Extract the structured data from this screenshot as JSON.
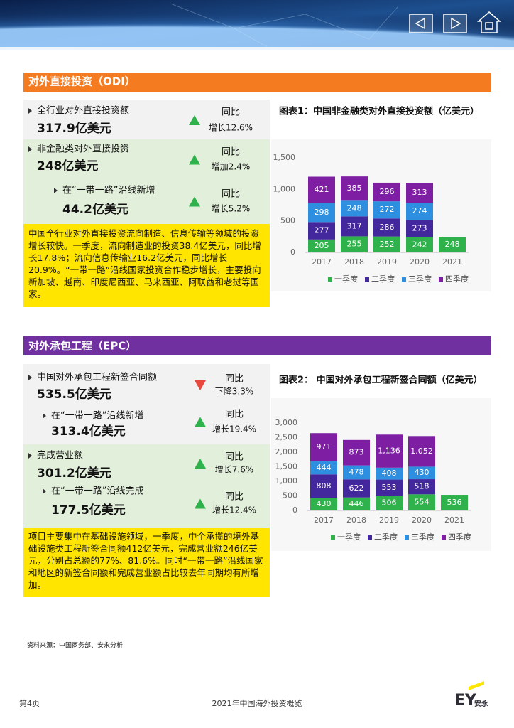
{
  "sections": [
    {
      "title": "对外直接投资（ODI）",
      "items": [
        {
          "label": "全行业对外直接投资额",
          "value": "317.9亿美元",
          "compare": "同比",
          "change": "增长12.6%"
        },
        {
          "label": "非金融类对外直接投资",
          "value": "248亿美元",
          "compare": "同比",
          "change": "增加2.4%"
        },
        {
          "label": "在“一带一路”沿线新增",
          "value": "44.2亿美元",
          "compare": "同比",
          "change": "增长5.2%"
        }
      ],
      "note": "中国全行业对外直接投资流向制造、信息传输等领域的投资增长较快。一季度，流向制造业的投资38.4亿美元，同比增长17.8%；流向信息传输业16.2亿美元，同比增长20.9%。“一带一路”沿线国家投资合作稳步增长，主要投向新加坡、越南、印度尼西亚、马来西亚、阿联酋和老挝等国家。"
    },
    {
      "title": "对外承包工程（EPC）",
      "items": [
        {
          "label": "中国对外承包工程新签合同额",
          "value": "535.5亿美元",
          "compare": "同比",
          "change": "下降3.3%"
        },
        {
          "label": "在“一带一路”沿线新增",
          "value": "313.4亿美元",
          "compare": "同比",
          "change": "增长19.4%"
        },
        {
          "label": "完成营业额",
          "value": "301.2亿美元",
          "compare": "同比",
          "change": "增长7.6%"
        },
        {
          "label": "在“一带一路”沿线完成",
          "value": "177.5亿美元",
          "compare": "同比",
          "change": "增长12.4%"
        }
      ],
      "note": "项目主要集中在基础设施领域，一季度，中企承揽的境外基础设施类工程新签合同额412亿美元，完成营业额246亿美元，分别占总额的77%、81.6%。同时“一带一路”沿线国家和地区的新签合同额和完成营业额占比较去年同期均有所增加。"
    }
  ],
  "chart_data": [
    {
      "type": "stacked_bar",
      "title": "图表1：中国非金融类对外直接投资额（亿美元）",
      "categories": [
        "2017",
        "2018",
        "2019",
        "2020",
        "2021"
      ],
      "series": [
        {
          "name": "一季度",
          "color": "#2fb24c",
          "values": [
            205,
            255,
            252,
            242,
            248
          ]
        },
        {
          "name": "二季度",
          "color": "#43279c",
          "values": [
            277,
            317,
            286,
            273,
            null
          ]
        },
        {
          "name": "三季度",
          "color": "#2e8fe0",
          "values": [
            298,
            248,
            272,
            274,
            null
          ]
        },
        {
          "name": "四季度",
          "color": "#7e1fa3",
          "values": [
            421,
            385,
            296,
            313,
            null
          ]
        }
      ],
      "ylim": [
        0,
        1500
      ],
      "yticks": [
        0,
        500,
        {
          "value": 1000,
          "label": "1,000"
        },
        {
          "value": 1500,
          "label": "1,500"
        }
      ]
    },
    {
      "type": "stacked_bar",
      "title": "图表2： 中国对外承包工程新签合同额（亿美元）",
      "categories": [
        "2017",
        "2018",
        "2019",
        "2020",
        "2021"
      ],
      "series": [
        {
          "name": "一季度",
          "color": "#2fb24c",
          "values": [
            430,
            446,
            506,
            554,
            536
          ]
        },
        {
          "name": "二季度",
          "color": "#43279c",
          "values": [
            808,
            622,
            553,
            518,
            null
          ]
        },
        {
          "name": "三季度",
          "color": "#2e8fe0",
          "values": [
            444,
            478,
            408,
            430,
            null
          ]
        },
        {
          "name": "四季度",
          "color": "#7e1fa3",
          "values": [
            971,
            873,
            1136,
            1052,
            null
          ],
          "value_labels": [
            "971",
            "873",
            "1,136",
            "1,052",
            null
          ]
        }
      ],
      "ylim": [
        0,
        3000
      ],
      "yticks": [
        0,
        500,
        {
          "value": 1000,
          "label": "1,000"
        },
        {
          "value": 1500,
          "label": "1,500"
        },
        {
          "value": 2000,
          "label": "2,000"
        },
        {
          "value": 2500,
          "label": "2,500"
        },
        {
          "value": 3000,
          "label": "3,000"
        }
      ]
    }
  ],
  "source": "资料来源：中国商务部、安永分析",
  "footer": {
    "page": "第4页",
    "title": "2021年中国海外投资概览",
    "logo": "EY",
    "logo_cn": "安永"
  }
}
